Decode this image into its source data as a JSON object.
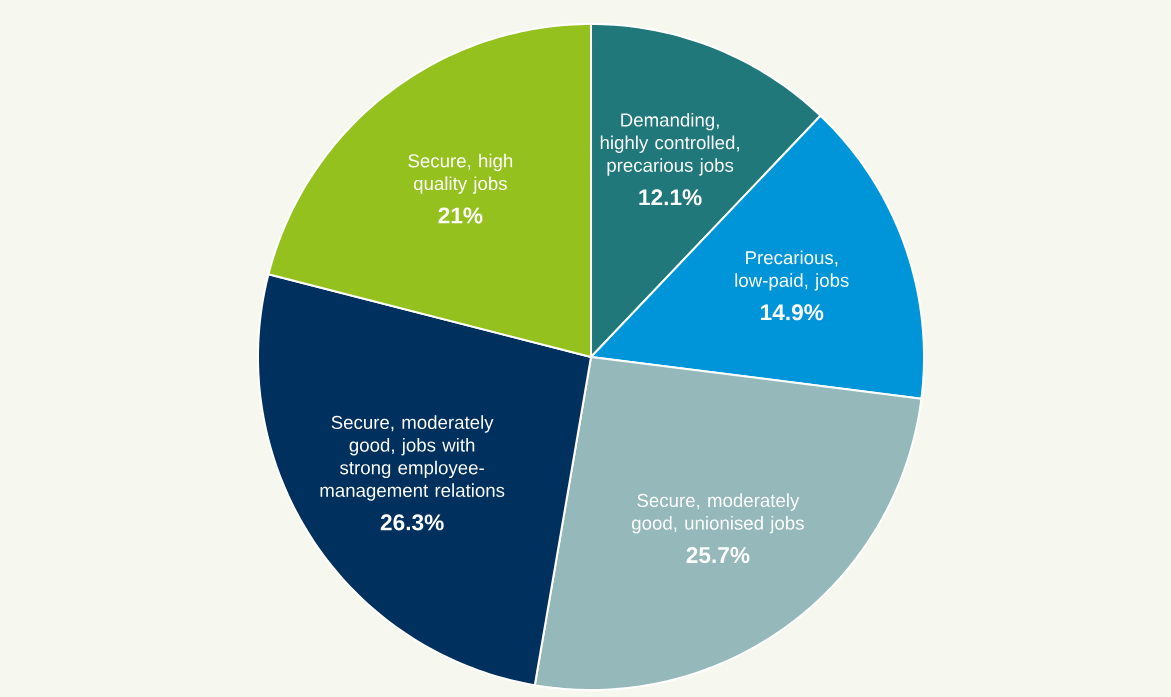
{
  "chart_data": {
    "type": "pie",
    "categories": [
      "Demanding, highly controlled, precarious jobs",
      "Precarious, low-paid, jobs",
      "Secure, moderately good, unionised jobs",
      "Secure, moderately good, jobs with strong employee-management relations",
      "Secure, high quality jobs"
    ],
    "values": [
      12.1,
      14.9,
      25.7,
      26.3,
      21
    ],
    "value_labels": [
      "12.1%",
      "14.9%",
      "25.7%",
      "26.3%",
      "21%"
    ],
    "colors": [
      "#20787b",
      "#0095d9",
      "#95b8ba",
      "#00305d",
      "#95c11f"
    ]
  }
}
